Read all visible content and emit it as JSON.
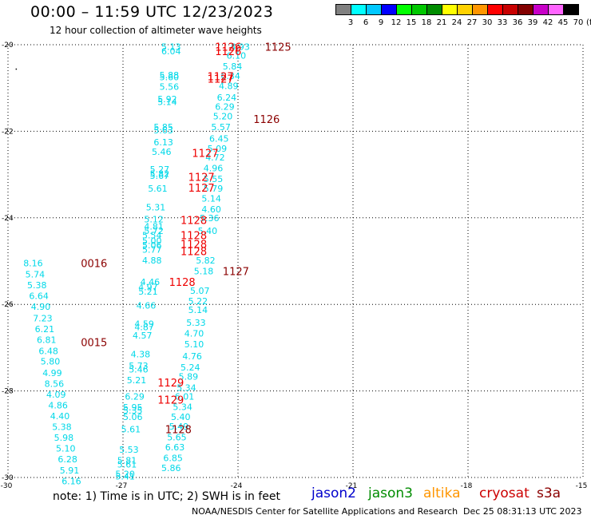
{
  "header": {
    "title": "00:00 – 11:59 UTC 12/23/2023",
    "subtitle": "12 hour collection of altimeter wave heights"
  },
  "legend": {
    "values": [
      "3",
      "6",
      "9",
      "12",
      "15",
      "18",
      "21",
      "24",
      "27",
      "30",
      "33",
      "36",
      "39",
      "42",
      "45",
      "70"
    ],
    "unit": "(ft)",
    "colors": [
      "#808080",
      "#00ffff",
      "#00c8ff",
      "#0000ff",
      "#00ff00",
      "#00c800",
      "#008c00",
      "#ffff00",
      "#ffd200",
      "#ff9600",
      "#ff0000",
      "#c80000",
      "#820000",
      "#c800c8",
      "#ff64ff",
      "#000000"
    ]
  },
  "footer": {
    "note": "note: 1) Time is in UTC; 2) SWH is in feet",
    "satellites": [
      {
        "name": "jason2",
        "color": "#0000cc"
      },
      {
        "name": "jason3",
        "color": "#008c00"
      },
      {
        "name": "altika",
        "color": "#ff9600"
      },
      {
        "name": "cryosat",
        "color": "#cc0000"
      },
      {
        "name": "s3a",
        "color": "#8b0000"
      }
    ],
    "credit": "NOAA/NESDIS Center for Satellite Applications and Research",
    "timestamp": "Dec 25 08:31:13 UTC 2023"
  },
  "chart_data": {
    "type": "scatter",
    "title": "12 hour collection of altimeter wave heights",
    "xlabel": "",
    "ylabel": "",
    "xlim": [
      -30,
      -15
    ],
    "ylim": [
      -30,
      -20
    ],
    "xticks": [
      "-30",
      "-27",
      "-24",
      "-21",
      "-18",
      "-15"
    ],
    "yticks": [
      "-20",
      "-22",
      "-24",
      "-26",
      "-28",
      "-30"
    ],
    "grid": true,
    "swh_color": "#00d8e8",
    "time_colors": {
      "red": "#ee0000",
      "darkred": "#8b0000"
    },
    "swh_points": [
      {
        "x": -26.0,
        "y": -20.05,
        "v": "5.13"
      },
      {
        "x": -26.0,
        "y": -20.15,
        "v": "6.04"
      },
      {
        "x": -24.2,
        "y": -20.05,
        "v": "4.93"
      },
      {
        "x": -24.3,
        "y": -20.25,
        "v": "6.10"
      },
      {
        "x": -24.4,
        "y": -20.5,
        "v": "5.84"
      },
      {
        "x": -26.05,
        "y": -20.7,
        "v": "5.88"
      },
      {
        "x": -26.05,
        "y": -20.75,
        "v": "5.60"
      },
      {
        "x": -24.45,
        "y": -20.72,
        "v": "6.34"
      },
      {
        "x": -26.05,
        "y": -20.97,
        "v": "5.56"
      },
      {
        "x": -24.5,
        "y": -20.95,
        "v": "4.89"
      },
      {
        "x": -26.1,
        "y": -21.25,
        "v": "5.92"
      },
      {
        "x": -26.1,
        "y": -21.32,
        "v": "5.14"
      },
      {
        "x": -24.55,
        "y": -21.22,
        "v": "6.24"
      },
      {
        "x": -24.6,
        "y": -21.43,
        "v": "6.29"
      },
      {
        "x": -24.65,
        "y": -21.65,
        "v": "5.20"
      },
      {
        "x": -26.2,
        "y": -21.9,
        "v": "5.85"
      },
      {
        "x": -26.2,
        "y": -21.97,
        "v": "5.63"
      },
      {
        "x": -24.7,
        "y": -21.9,
        "v": "5.57"
      },
      {
        "x": -26.2,
        "y": -22.25,
        "v": "6.13"
      },
      {
        "x": -24.75,
        "y": -22.17,
        "v": "6.45"
      },
      {
        "x": -24.8,
        "y": -22.4,
        "v": "5.09"
      },
      {
        "x": -26.25,
        "y": -22.47,
        "v": "5.46"
      },
      {
        "x": -24.85,
        "y": -22.6,
        "v": "4.72"
      },
      {
        "x": -26.3,
        "y": -22.88,
        "v": "5.27"
      },
      {
        "x": -24.9,
        "y": -22.85,
        "v": "4.96"
      },
      {
        "x": -26.3,
        "y": -22.98,
        "v": "5.82"
      },
      {
        "x": -26.3,
        "y": -23.03,
        "v": "5.67"
      },
      {
        "x": -24.9,
        "y": -23.1,
        "v": "5.55"
      },
      {
        "x": -26.35,
        "y": -23.32,
        "v": "5.61"
      },
      {
        "x": -24.9,
        "y": -23.32,
        "v": "5.79"
      },
      {
        "x": -24.95,
        "y": -23.55,
        "v": "5.14"
      },
      {
        "x": -26.4,
        "y": -23.75,
        "v": "5.31"
      },
      {
        "x": -24.95,
        "y": -23.8,
        "v": "4.60"
      },
      {
        "x": -26.45,
        "y": -24.03,
        "v": "5.12"
      },
      {
        "x": -25.0,
        "y": -24.0,
        "v": "5.36"
      },
      {
        "x": -26.45,
        "y": -24.2,
        "v": "4.81"
      },
      {
        "x": -26.45,
        "y": -24.3,
        "v": "5.72"
      },
      {
        "x": -25.05,
        "y": -24.3,
        "v": "5.40"
      },
      {
        "x": -26.5,
        "y": -24.4,
        "v": "5.54"
      },
      {
        "x": -26.5,
        "y": -24.53,
        "v": "5.00"
      },
      {
        "x": -26.5,
        "y": -24.63,
        "v": "5.06"
      },
      {
        "x": -26.5,
        "y": -24.73,
        "v": "5.77"
      },
      {
        "x": -26.5,
        "y": -24.98,
        "v": "4.88"
      },
      {
        "x": -25.1,
        "y": -24.98,
        "v": "5.82"
      },
      {
        "x": -25.15,
        "y": -25.23,
        "v": "5.18"
      },
      {
        "x": -26.55,
        "y": -25.48,
        "v": "4.46"
      },
      {
        "x": -26.6,
        "y": -25.6,
        "v": "4.97"
      },
      {
        "x": -26.6,
        "y": -25.7,
        "v": "5.21"
      },
      {
        "x": -25.25,
        "y": -25.68,
        "v": "5.07"
      },
      {
        "x": -25.3,
        "y": -25.92,
        "v": "5.22"
      },
      {
        "x": -26.65,
        "y": -26.02,
        "v": "4.66"
      },
      {
        "x": -25.3,
        "y": -26.13,
        "v": "5.14"
      },
      {
        "x": -26.7,
        "y": -26.45,
        "v": "4.59"
      },
      {
        "x": -26.7,
        "y": -26.52,
        "v": "4.87"
      },
      {
        "x": -25.35,
        "y": -26.42,
        "v": "5.33"
      },
      {
        "x": -26.75,
        "y": -26.72,
        "v": "4.57"
      },
      {
        "x": -25.4,
        "y": -26.67,
        "v": "4.70"
      },
      {
        "x": -25.4,
        "y": -26.92,
        "v": "5.10"
      },
      {
        "x": -26.8,
        "y": -27.15,
        "v": "4.38"
      },
      {
        "x": -25.45,
        "y": -27.2,
        "v": "4.76"
      },
      {
        "x": -26.85,
        "y": -27.42,
        "v": "5.73"
      },
      {
        "x": -26.85,
        "y": -27.5,
        "v": "5.46"
      },
      {
        "x": -25.5,
        "y": -27.45,
        "v": "5.24"
      },
      {
        "x": -25.55,
        "y": -27.67,
        "v": "5.89"
      },
      {
        "x": -26.9,
        "y": -27.75,
        "v": "5.21"
      },
      {
        "x": -25.6,
        "y": -27.92,
        "v": "5.34"
      },
      {
        "x": -26.95,
        "y": -28.13,
        "v": "6.29"
      },
      {
        "x": -25.65,
        "y": -28.13,
        "v": "6.01"
      },
      {
        "x": -27.0,
        "y": -28.38,
        "v": "5.95"
      },
      {
        "x": -27.0,
        "y": -28.45,
        "v": "5.35"
      },
      {
        "x": -25.7,
        "y": -28.37,
        "v": "5.34"
      },
      {
        "x": -27.0,
        "y": -28.6,
        "v": "5.06"
      },
      {
        "x": -25.75,
        "y": -28.6,
        "v": "5.40"
      },
      {
        "x": -27.05,
        "y": -28.88,
        "v": "5.61"
      },
      {
        "x": -25.8,
        "y": -28.82,
        "v": "5.49"
      },
      {
        "x": -25.85,
        "y": -29.07,
        "v": "5.65"
      },
      {
        "x": -27.1,
        "y": -29.35,
        "v": "5.53"
      },
      {
        "x": -25.9,
        "y": -29.3,
        "v": "6.63"
      },
      {
        "x": -27.15,
        "y": -29.6,
        "v": "5.81"
      },
      {
        "x": -25.95,
        "y": -29.55,
        "v": "6.85"
      },
      {
        "x": -27.15,
        "y": -29.7,
        "v": "5.61"
      },
      {
        "x": -26.0,
        "y": -29.78,
        "v": "5.86"
      },
      {
        "x": -27.2,
        "y": -29.92,
        "v": "5.20"
      },
      {
        "x": -27.2,
        "y": -29.97,
        "v": "5.41"
      },
      {
        "x": -29.6,
        "y": -25.05,
        "v": "8.16"
      },
      {
        "x": -29.55,
        "y": -25.3,
        "v": "5.74"
      },
      {
        "x": -29.5,
        "y": -25.55,
        "v": "5.38"
      },
      {
        "x": -29.45,
        "y": -25.8,
        "v": "6.64"
      },
      {
        "x": -29.4,
        "y": -26.05,
        "v": "4.90"
      },
      {
        "x": -29.35,
        "y": -26.32,
        "v": "7.23"
      },
      {
        "x": -29.3,
        "y": -26.57,
        "v": "6.21"
      },
      {
        "x": -29.25,
        "y": -26.82,
        "v": "6.81"
      },
      {
        "x": -29.2,
        "y": -27.08,
        "v": "6.48"
      },
      {
        "x": -29.15,
        "y": -27.32,
        "v": "5.80"
      },
      {
        "x": -29.1,
        "y": -27.58,
        "v": "4.99"
      },
      {
        "x": -29.05,
        "y": -27.83,
        "v": "8.56"
      },
      {
        "x": -29.0,
        "y": -28.08,
        "v": "4.09"
      },
      {
        "x": -28.95,
        "y": -28.33,
        "v": "4.86"
      },
      {
        "x": -28.9,
        "y": -28.58,
        "v": "4.40"
      },
      {
        "x": -28.85,
        "y": -28.83,
        "v": "5.38"
      },
      {
        "x": -28.8,
        "y": -29.08,
        "v": "5.98"
      },
      {
        "x": -28.75,
        "y": -29.33,
        "v": "5.10"
      },
      {
        "x": -28.7,
        "y": -29.58,
        "v": "6.28"
      },
      {
        "x": -28.65,
        "y": -29.83,
        "v": "5.91"
      },
      {
        "x": -28.6,
        "y": -30.08,
        "v": "6.16"
      }
    ],
    "time_labels": [
      {
        "x": -24.6,
        "y": -20.05,
        "t": "1126",
        "c": "red"
      },
      {
        "x": -24.6,
        "y": -20.15,
        "t": "1126",
        "c": "red"
      },
      {
        "x": -23.3,
        "y": -20.05,
        "t": "1125",
        "c": "darkred"
      },
      {
        "x": -24.8,
        "y": -20.73,
        "t": "1127",
        "c": "red"
      },
      {
        "x": -24.8,
        "y": -20.78,
        "t": "1127",
        "c": "red"
      },
      {
        "x": -23.6,
        "y": -21.72,
        "t": "1126",
        "c": "darkred"
      },
      {
        "x": -25.2,
        "y": -22.5,
        "t": "1127",
        "c": "red"
      },
      {
        "x": -25.3,
        "y": -23.05,
        "t": "1127",
        "c": "red"
      },
      {
        "x": -25.3,
        "y": -23.3,
        "t": "1127",
        "c": "red"
      },
      {
        "x": -25.5,
        "y": -24.05,
        "t": "1128",
        "c": "red"
      },
      {
        "x": -25.5,
        "y": -24.4,
        "t": "1128",
        "c": "red"
      },
      {
        "x": -25.5,
        "y": -24.6,
        "t": "1128",
        "c": "red"
      },
      {
        "x": -25.5,
        "y": -24.77,
        "t": "1128",
        "c": "red"
      },
      {
        "x": -24.4,
        "y": -25.23,
        "t": "1127",
        "c": "darkred"
      },
      {
        "x": -25.8,
        "y": -25.48,
        "t": "1128",
        "c": "red"
      },
      {
        "x": -28.1,
        "y": -25.05,
        "t": "0016",
        "c": "darkred"
      },
      {
        "x": -28.1,
        "y": -26.87,
        "t": "0015",
        "c": "darkred"
      },
      {
        "x": -26.1,
        "y": -27.8,
        "t": "1129",
        "c": "red"
      },
      {
        "x": -26.1,
        "y": -28.2,
        "t": "1129",
        "c": "red"
      },
      {
        "x": -25.9,
        "y": -28.88,
        "t": "1128",
        "c": "darkred"
      }
    ],
    "stray_points": [
      {
        "x": -29.8,
        "y": -20.55
      }
    ]
  }
}
